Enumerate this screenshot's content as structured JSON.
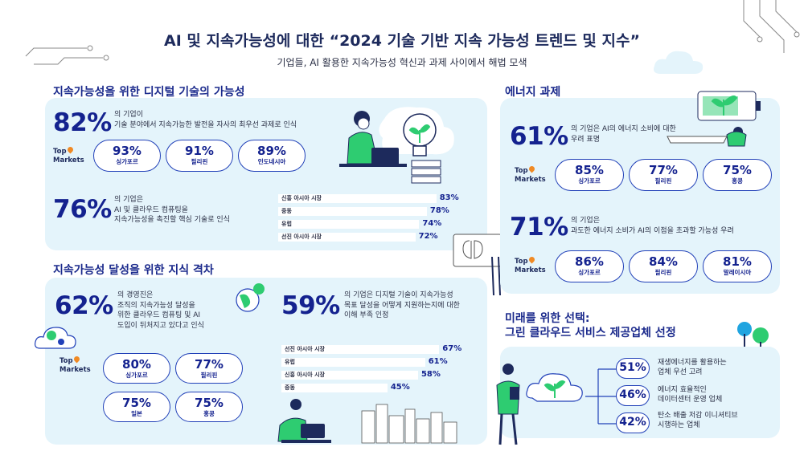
{
  "header": {
    "title": "AI 및 지속가능성에 대한 “2024 기술 기반 지속 가능성 트렌드 및 지수”",
    "subtitle": "기업들, AI 활용한 지속가능성 혁신과 과제 사이에서 해법 모색"
  },
  "digital": {
    "title": "지속가능성을 위한 디지털 기술의 가능성",
    "stat1": {
      "value": "82%",
      "text": [
        "의 기업이",
        "기술 분야에서 지속가능한 발전을 자사의 최우선 과제로 인식"
      ]
    },
    "top_markets_label": [
      "Top",
      "Markets"
    ],
    "markets1": [
      {
        "value": "93%",
        "name": "싱가포르"
      },
      {
        "value": "91%",
        "name": "필리핀"
      },
      {
        "value": "89%",
        "name": "인도네시아"
      }
    ],
    "stat2": {
      "value": "76%",
      "text": [
        "의 기업은",
        "AI 및 클라우드 컴퓨팅을",
        "지속가능성을 촉진할 핵심 기술로 인식"
      ]
    },
    "bars": [
      {
        "label": "신흥 아시아 시장",
        "value": 83,
        "text": "83%"
      },
      {
        "label": "중동",
        "value": 78,
        "text": "78%"
      },
      {
        "label": "유럽",
        "value": 74,
        "text": "74%"
      },
      {
        "label": "선진 아시아 시장",
        "value": 72,
        "text": "72%"
      }
    ]
  },
  "gap": {
    "title": "지속가능성 달성을 위한 지식 격차",
    "stat1": {
      "value": "62%",
      "text": [
        "의 경영진은",
        "조직의 지속가능성 달성을",
        "위한 클라우드 컴퓨팅 및 AI",
        "도입이 뒤처지고 있다고 인식"
      ]
    },
    "top_markets_label": [
      "Top",
      "Markets"
    ],
    "markets": [
      {
        "value": "80%",
        "name": "싱가포르"
      },
      {
        "value": "77%",
        "name": "필리핀"
      },
      {
        "value": "75%",
        "name": "일본"
      },
      {
        "value": "75%",
        "name": "홍콩"
      }
    ],
    "stat2": {
      "value": "59%",
      "text": [
        "의 기업은 디지털 기술이 지속가능성",
        "목표 달성을 어떻게 지원하는지에 대한",
        "이해 부족 인정"
      ]
    },
    "bars": [
      {
        "label": "선진 아시아 시장",
        "value": 67,
        "text": "67%"
      },
      {
        "label": "유럽",
        "value": 61,
        "text": "61%"
      },
      {
        "label": "신흥 아시아 시장",
        "value": 58,
        "text": "58%"
      },
      {
        "label": "중동",
        "value": 45,
        "text": "45%"
      }
    ]
  },
  "energy": {
    "title": "에너지 과제",
    "stat1": {
      "value": "61%",
      "text": [
        "의 기업은 AI의 에너지 소비에 대한",
        "우려 표명"
      ]
    },
    "top_markets_label": [
      "Top",
      "Markets"
    ],
    "markets1": [
      {
        "value": "85%",
        "name": "싱가포르"
      },
      {
        "value": "77%",
        "name": "필리핀"
      },
      {
        "value": "75%",
        "name": "홍콩"
      }
    ],
    "stat2": {
      "value": "71%",
      "text": [
        "의 기업은",
        "과도한 에너지 소비가 AI의 이점을 초과할 가능성 우려"
      ]
    },
    "markets2": [
      {
        "value": "86%",
        "name": "싱가포르"
      },
      {
        "value": "84%",
        "name": "필리핀"
      },
      {
        "value": "81%",
        "name": "말레이시아"
      }
    ]
  },
  "future": {
    "title": [
      "미래를 위한 선택:",
      "그린 클라우드 서비스 제공업체 선정"
    ],
    "items": [
      {
        "value": "51%",
        "text": [
          "재생에너지를 활용하는",
          "업체 우선 고려"
        ]
      },
      {
        "value": "46%",
        "text": [
          "에너지 효율적인",
          "데이터센터 운영 업체"
        ]
      },
      {
        "value": "42%",
        "text": [
          "탄소 배출 저감 이니셔티브",
          "시행하는 업체"
        ]
      }
    ]
  },
  "colors": {
    "navy": "#14228f",
    "panel": "#e4f4fb",
    "green": "#2ecc71",
    "orange": "#f08a24"
  }
}
